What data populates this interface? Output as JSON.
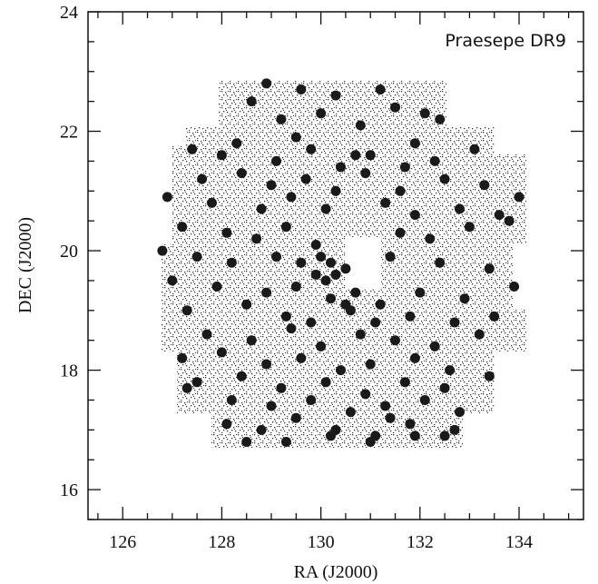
{
  "chart_data": {
    "type": "scatter",
    "title": "Praesepe DR9",
    "xlabel": "RA (J2000)",
    "ylabel": "DEC (J2000)",
    "xlim": [
      125.3,
      135.3
    ],
    "ylim": [
      15.5,
      24
    ],
    "xticks": [
      "126",
      "128",
      "130",
      "132",
      "134"
    ],
    "yticks": [
      "16",
      "18",
      "20",
      "22",
      "24"
    ],
    "grid": false,
    "legend": "none",
    "colors": {
      "points": "#1a1a1a",
      "field": "#333333",
      "axes": "#111111"
    },
    "series": [
      {
        "marker": "filled-circle",
        "x": [
          128.9,
          128.6,
          129.6,
          130.3,
          131.2,
          132.1,
          129.2,
          130.0,
          130.8,
          131.5,
          132.4,
          128.3,
          129.5,
          130.7,
          131.9,
          127.4,
          128.0,
          129.1,
          129.8,
          130.4,
          131.0,
          131.7,
          132.3,
          133.1,
          127.6,
          128.4,
          129.0,
          129.7,
          130.3,
          130.9,
          131.6,
          132.5,
          133.3,
          134.0,
          126.9,
          127.8,
          128.8,
          129.4,
          130.1,
          131.3,
          131.9,
          132.8,
          133.6,
          127.2,
          128.1,
          128.7,
          129.3,
          129.9,
          130.0,
          130.2,
          130.5,
          131.6,
          132.2,
          133.0,
          133.8,
          126.8,
          127.5,
          128.2,
          129.1,
          129.6,
          129.9,
          130.1,
          130.3,
          131.4,
          132.4,
          133.4,
          127.0,
          127.9,
          128.9,
          129.5,
          130.2,
          130.7,
          131.2,
          132.0,
          132.9,
          133.9,
          127.3,
          128.5,
          129.3,
          129.8,
          130.6,
          131.1,
          131.8,
          132.7,
          133.5,
          127.7,
          128.6,
          129.4,
          130.0,
          130.8,
          131.5,
          132.3,
          133.2,
          127.2,
          128.0,
          128.9,
          129.6,
          130.4,
          131.0,
          131.9,
          132.6,
          127.5,
          128.4,
          129.2,
          130.1,
          130.9,
          131.7,
          132.5,
          133.4,
          128.2,
          129.0,
          129.8,
          130.6,
          131.3,
          132.1,
          132.8,
          128.1,
          128.8,
          129.5,
          130.3,
          131.1,
          131.8,
          132.5,
          128.5,
          129.3,
          130.2,
          131.0,
          131.9,
          132.7,
          127.3,
          131.4,
          130.5
        ],
        "y": [
          22.8,
          22.5,
          22.7,
          22.6,
          22.7,
          22.3,
          22.2,
          22.3,
          22.1,
          22.4,
          22.2,
          21.8,
          21.9,
          21.6,
          21.8,
          21.7,
          21.6,
          21.5,
          21.7,
          21.4,
          21.6,
          21.4,
          21.5,
          21.7,
          21.2,
          21.3,
          21.1,
          21.2,
          21.0,
          21.3,
          21.0,
          21.2,
          21.1,
          20.9,
          20.9,
          20.8,
          20.7,
          20.9,
          20.7,
          20.8,
          20.6,
          20.7,
          20.6,
          20.4,
          20.3,
          20.2,
          20.4,
          20.1,
          19.9,
          19.8,
          19.7,
          20.3,
          20.2,
          20.4,
          20.5,
          20.0,
          19.9,
          19.8,
          19.9,
          19.8,
          19.6,
          19.5,
          19.6,
          19.9,
          19.8,
          19.7,
          19.5,
          19.4,
          19.3,
          19.4,
          19.2,
          19.3,
          19.1,
          19.3,
          19.2,
          19.4,
          19.0,
          19.1,
          18.9,
          18.8,
          19.0,
          18.8,
          18.9,
          18.8,
          18.9,
          18.6,
          18.5,
          18.7,
          18.4,
          18.6,
          18.5,
          18.4,
          18.6,
          18.2,
          18.3,
          18.1,
          18.2,
          18.0,
          18.1,
          18.2,
          18.0,
          17.8,
          17.9,
          17.7,
          17.8,
          17.6,
          17.8,
          17.7,
          17.9,
          17.5,
          17.4,
          17.5,
          17.3,
          17.4,
          17.5,
          17.3,
          17.1,
          17.0,
          17.2,
          17.0,
          16.9,
          17.1,
          16.9,
          16.8,
          16.8,
          16.9,
          16.8,
          16.9,
          17.0,
          17.7,
          17.2,
          19.1
        ]
      }
    ]
  }
}
